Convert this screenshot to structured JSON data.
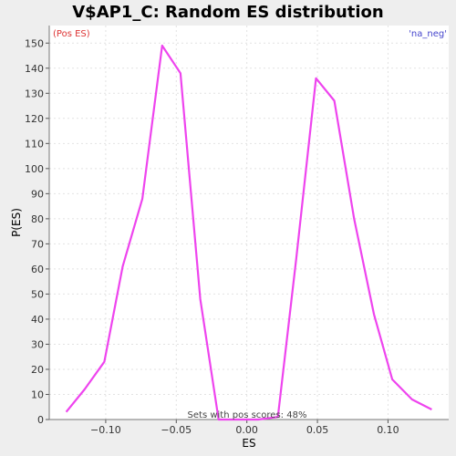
{
  "chart_data": {
    "type": "line",
    "title": "V$AP1_C: Random ES distribution",
    "xlabel": "ES",
    "ylabel": "P(ES)",
    "xlim": [
      -0.14,
      0.143
    ],
    "ylim": [
      0,
      157
    ],
    "xticks": [
      -0.1,
      -0.05,
      0.0,
      0.05,
      0.1
    ],
    "xtick_labels": [
      "−0.10",
      "−0.05",
      "0.00",
      "0.05",
      "0.10"
    ],
    "yticks": [
      0,
      10,
      20,
      30,
      40,
      50,
      60,
      70,
      80,
      90,
      100,
      110,
      120,
      130,
      140,
      150
    ],
    "grid": true,
    "corner_left_text": "(Pos ES)",
    "corner_right_text": "'na_neg'",
    "footnote": "Sets with pos scores: 48%",
    "series": [
      {
        "color": "#ee44ee",
        "x": [
          -0.128,
          -0.115,
          -0.101,
          -0.088,
          -0.074,
          -0.06,
          -0.047,
          -0.033,
          -0.02,
          -0.006,
          0.008,
          0.022,
          0.035,
          0.049,
          0.062,
          0.076,
          0.09,
          0.103,
          0.117,
          0.131
        ],
        "y": [
          3,
          12,
          23,
          61,
          88,
          149,
          138,
          48,
          0,
          0,
          0,
          1,
          64,
          136,
          127,
          80,
          42,
          16,
          8,
          4
        ]
      }
    ]
  }
}
